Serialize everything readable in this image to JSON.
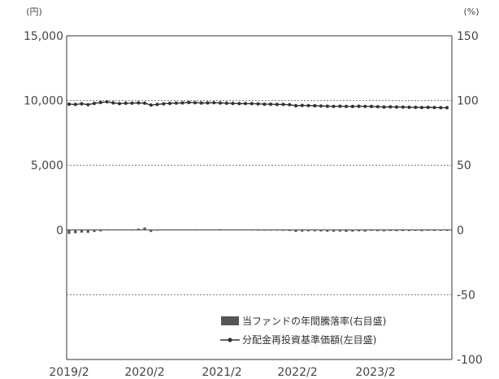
{
  "chart_data": {
    "type": "line",
    "left_unit": "(円)",
    "right_unit": "(%)",
    "left_axis": {
      "ylim": [
        -10000,
        15000
      ],
      "tick_labels": [
        "15,000",
        "10,000",
        "5,000",
        "0"
      ],
      "tick_values": [
        15000,
        10000,
        5000,
        0
      ]
    },
    "right_axis": {
      "ylim": [
        -100,
        150
      ],
      "tick_labels": [
        "150",
        "100",
        "50",
        "0",
        "-50",
        "-100"
      ],
      "tick_values": [
        150,
        100,
        50,
        0,
        -50,
        -100
      ]
    },
    "x_labels": [
      "2019/2",
      "2020/2",
      "2021/2",
      "2022/2",
      "2023/2"
    ],
    "x_range": [
      "2019/2",
      "2024/2"
    ],
    "grid": "dotted horizontal at 10,000 / 5,000 / -50%",
    "series": [
      {
        "name": "分配金再投資基準価額(左目盛)",
        "axis": "left",
        "style": "line-with-markers",
        "color": "#333333",
        "x": [
          "2019/2",
          "2019/3",
          "2019/4",
          "2019/5",
          "2019/6",
          "2019/7",
          "2019/8",
          "2019/9",
          "2019/10",
          "2019/11",
          "2019/12",
          "2020/1",
          "2020/2",
          "2020/3",
          "2020/4",
          "2020/5",
          "2020/6",
          "2020/7",
          "2020/8",
          "2020/9",
          "2020/10",
          "2020/11",
          "2020/12",
          "2021/1",
          "2021/2",
          "2021/3",
          "2021/4",
          "2021/5",
          "2021/6",
          "2021/7",
          "2021/8",
          "2021/9",
          "2021/10",
          "2021/11",
          "2021/12",
          "2022/1",
          "2022/2",
          "2022/3",
          "2022/4",
          "2022/5",
          "2022/6",
          "2022/7",
          "2022/8",
          "2022/9",
          "2022/10",
          "2022/11",
          "2022/12",
          "2023/1",
          "2023/2",
          "2023/3",
          "2023/4",
          "2023/5",
          "2023/6",
          "2023/7",
          "2023/8",
          "2023/9",
          "2023/10",
          "2023/11",
          "2023/12",
          "2024/1",
          "2024/2"
        ],
        "values": [
          9720,
          9700,
          9750,
          9680,
          9780,
          9850,
          9900,
          9820,
          9760,
          9790,
          9800,
          9820,
          9800,
          9650,
          9700,
          9750,
          9780,
          9800,
          9820,
          9850,
          9830,
          9810,
          9820,
          9830,
          9810,
          9790,
          9780,
          9760,
          9770,
          9760,
          9740,
          9720,
          9720,
          9700,
          9700,
          9680,
          9600,
          9620,
          9610,
          9600,
          9580,
          9560,
          9550,
          9560,
          9550,
          9540,
          9560,
          9550,
          9540,
          9520,
          9500,
          9510,
          9500,
          9490,
          9480,
          9470,
          9460,
          9470,
          9460,
          9450,
          9450
        ]
      },
      {
        "name": "当ファンドの年間騰落率(右目盛)",
        "axis": "right",
        "style": "bar",
        "color": "#555555",
        "x": [
          "2019/2",
          "2019/3",
          "2019/4",
          "2019/5",
          "2019/6",
          "2019/7",
          "2019/8",
          "2019/9",
          "2019/10",
          "2019/11",
          "2019/12",
          "2020/1",
          "2020/2",
          "2020/3",
          "2020/4",
          "2020/5",
          "2020/6",
          "2020/7",
          "2020/8",
          "2020/9",
          "2020/10",
          "2020/11",
          "2020/12",
          "2021/1",
          "2021/2",
          "2021/3",
          "2021/4",
          "2021/5",
          "2021/6",
          "2021/7",
          "2021/8",
          "2021/9",
          "2021/10",
          "2021/11",
          "2021/12",
          "2022/1",
          "2022/2",
          "2022/3",
          "2022/4",
          "2022/5",
          "2022/6",
          "2022/7",
          "2022/8",
          "2022/9",
          "2022/10",
          "2022/11",
          "2022/12",
          "2023/1",
          "2023/2",
          "2023/3",
          "2023/4",
          "2023/5",
          "2023/6",
          "2023/7",
          "2023/8",
          "2023/9",
          "2023/10",
          "2023/11",
          "2023/12",
          "2024/1",
          "2024/2"
        ],
        "values": [
          -3,
          -2.5,
          -2,
          -2.2,
          -1.5,
          -1,
          0.5,
          0.3,
          0.4,
          0.2,
          0.5,
          1,
          2,
          -1.5,
          -0.5,
          0.2,
          0.3,
          0.5,
          0.3,
          0.4,
          0.5,
          0.2,
          0.3,
          0.4,
          0.6,
          0.5,
          0.4,
          0.2,
          0.2,
          0.1,
          -0.2,
          -0.3,
          -0.4,
          -0.5,
          -0.6,
          -0.8,
          -1.5,
          -1.2,
          -1,
          -1,
          -1.1,
          -1.3,
          -1.3,
          -1.2,
          -1.4,
          -1.2,
          -1,
          -1.2,
          -0.6,
          -0.9,
          -1,
          -0.8,
          -0.9,
          -0.8,
          -0.8,
          -0.7,
          -0.9,
          -0.6,
          -0.7,
          -0.6,
          -0.7
        ]
      }
    ]
  },
  "legend": {
    "items": [
      {
        "label": "当ファンドの年間騰落率(右目盛)",
        "kind": "bar"
      },
      {
        "label": "分配金再投資基準価額(左目盛)",
        "kind": "line"
      }
    ]
  }
}
